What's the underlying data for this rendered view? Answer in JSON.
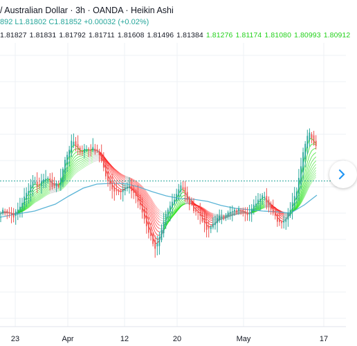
{
  "header": {
    "title": "/ Australian Dollar · 3h · OANDA · Heikin Ashi",
    "ohlc": "892  L1.81802  C1.81852  +0.00032 (+0.02%)"
  },
  "indicator_values": [
    {
      "text": "1.81827",
      "color": "#131722"
    },
    {
      "text": "1.81831",
      "color": "#131722"
    },
    {
      "text": "1.81792",
      "color": "#131722"
    },
    {
      "text": "1.81711",
      "color": "#131722"
    },
    {
      "text": "1.81608",
      "color": "#131722"
    },
    {
      "text": "1.81496",
      "color": "#131722"
    },
    {
      "text": "1.81384",
      "color": "#131722"
    },
    {
      "text": "1.81276",
      "color": "#22d11a"
    },
    {
      "text": "1.81174",
      "color": "#22d11a"
    },
    {
      "text": "1.81080",
      "color": "#22d11a"
    },
    {
      "text": "1.80993",
      "color": "#22d11a"
    },
    {
      "text": "1.80912",
      "color": "#22d11a"
    }
  ],
  "colors": {
    "bull": "#26a69a",
    "bear": "#ef5350",
    "ma_line": "#5ab4d6",
    "last_price_line": "#26a69a",
    "ribbon_bull": "#22e011",
    "ribbon_bear": "#ff1a1a",
    "ribbon_neutral": "#9a9a9a"
  },
  "icons": {
    "scroll_button": "chevron-right-icon"
  },
  "chart_data": {
    "type": "candlestick",
    "chart_style": "Heikin Ashi",
    "x_ticks": [
      "23",
      "Apr",
      "12",
      "20",
      "May",
      "17"
    ],
    "grid": true,
    "price_scale_visible": false,
    "price_path": [
      [
        0,
        1.77
      ],
      [
        5,
        1.778
      ],
      [
        12,
        1.773
      ],
      [
        20,
        1.768
      ],
      [
        28,
        1.78
      ],
      [
        38,
        1.8
      ],
      [
        48,
        1.82
      ],
      [
        55,
        1.81
      ],
      [
        65,
        1.826
      ],
      [
        75,
        1.812
      ],
      [
        85,
        1.812
      ],
      [
        95,
        1.852
      ],
      [
        105,
        1.878
      ],
      [
        115,
        1.86
      ],
      [
        125,
        1.865
      ],
      [
        135,
        1.865
      ],
      [
        145,
        1.855
      ],
      [
        155,
        1.818
      ],
      [
        165,
        1.805
      ],
      [
        175,
        1.805
      ],
      [
        185,
        1.81
      ],
      [
        195,
        1.8
      ],
      [
        205,
        1.775
      ],
      [
        215,
        1.745
      ],
      [
        225,
        1.72
      ],
      [
        232,
        1.74
      ],
      [
        240,
        1.77
      ],
      [
        250,
        1.79
      ],
      [
        262,
        1.815
      ],
      [
        270,
        1.79
      ],
      [
        280,
        1.778
      ],
      [
        290,
        1.768
      ],
      [
        300,
        1.745
      ],
      [
        310,
        1.76
      ],
      [
        320,
        1.768
      ],
      [
        330,
        1.772
      ],
      [
        340,
        1.775
      ],
      [
        350,
        1.778
      ],
      [
        360,
        1.77
      ],
      [
        370,
        1.788
      ],
      [
        380,
        1.8
      ],
      [
        390,
        1.782
      ],
      [
        400,
        1.762
      ],
      [
        410,
        1.76
      ],
      [
        420,
        1.78
      ],
      [
        430,
        1.81
      ],
      [
        440,
        1.87
      ],
      [
        447,
        1.888
      ],
      [
        452,
        1.876
      ],
      [
        458,
        1.868
      ]
    ],
    "slow_ma": [
      [
        0,
        1.766
      ],
      [
        20,
        1.77
      ],
      [
        50,
        1.775
      ],
      [
        80,
        1.785
      ],
      [
        100,
        1.797
      ],
      [
        120,
        1.808
      ],
      [
        140,
        1.814
      ],
      [
        160,
        1.815
      ],
      [
        180,
        1.815
      ],
      [
        200,
        1.81
      ],
      [
        220,
        1.803
      ],
      [
        240,
        1.797
      ],
      [
        260,
        1.793
      ],
      [
        280,
        1.792
      ],
      [
        300,
        1.789
      ],
      [
        320,
        1.783
      ],
      [
        340,
        1.779
      ],
      [
        360,
        1.777
      ],
      [
        380,
        1.775
      ],
      [
        400,
        1.774
      ],
      [
        420,
        1.772
      ],
      [
        440,
        1.784
      ],
      [
        458,
        1.798
      ]
    ],
    "last_price": 1.8185
  }
}
